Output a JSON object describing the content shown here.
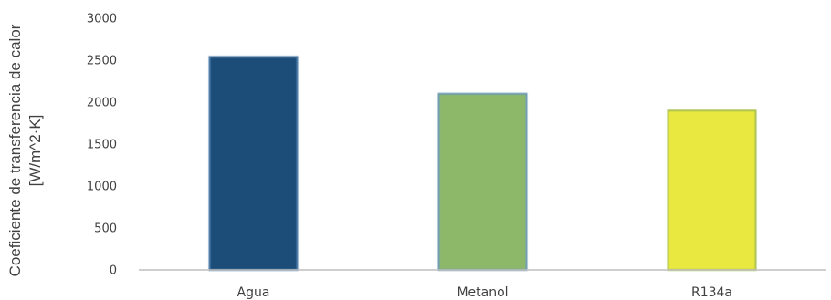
{
  "chart_data": {
    "type": "bar",
    "categories": [
      "Agua",
      "Metanol",
      "R134a"
    ],
    "values": [
      2540,
      2100,
      1900
    ],
    "ylabel_line1": "Coeficiente de transferencia de calor",
    "ylabel_line2": "[W/m^2·K]",
    "ylim": [
      0,
      3000
    ],
    "yticks": [
      0,
      500,
      1000,
      1500,
      2000,
      2500,
      3000
    ],
    "ytick_labels": [
      "0",
      "500",
      "1000",
      "1500",
      "2000",
      "2500",
      "3000"
    ],
    "grid": false,
    "legend": "none",
    "colors": [
      "#1f4e79",
      "#8db86a",
      "#e8e840"
    ],
    "edge_colors": [
      "#4a7aa8",
      "#6a9ab0",
      "#a8c050"
    ]
  }
}
